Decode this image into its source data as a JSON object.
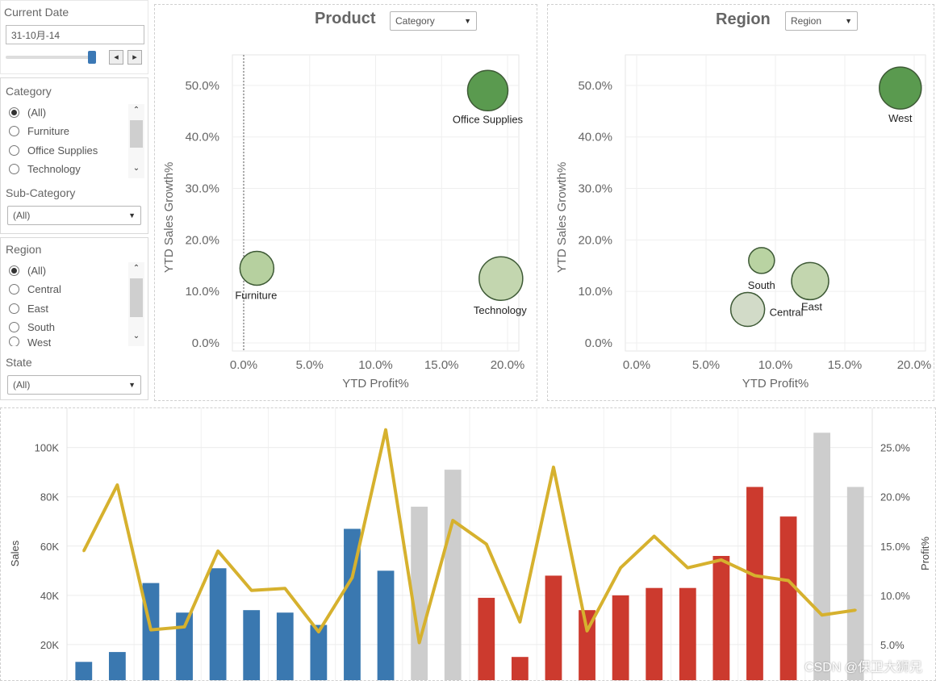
{
  "filters": {
    "current_date": {
      "label": "Current Date",
      "value": "31-10月-14"
    },
    "category": {
      "label": "Category",
      "options": [
        "(All)",
        "Furniture",
        "Office Supplies",
        "Technology"
      ],
      "selected": "(All)"
    },
    "sub_category": {
      "label": "Sub-Category",
      "value": "(All)"
    },
    "region": {
      "label": "Region",
      "options": [
        "(All)",
        "Central",
        "East",
        "South",
        "West"
      ],
      "selected": "(All)"
    },
    "state": {
      "label": "State",
      "value": "(All)"
    }
  },
  "product_panel": {
    "title": "Product",
    "dropdown": "Category"
  },
  "region_panel": {
    "title": "Region",
    "dropdown": "Region"
  },
  "watermark": "CSDN @保卫大狮兄",
  "chart_data": [
    {
      "type": "scatter",
      "name": "Product",
      "xlabel": "YTD Profit%",
      "ylabel": "YTD Sales Growth%",
      "xlim": [
        0,
        20
      ],
      "ylim": [
        0,
        55
      ],
      "x_ticks": [
        "0.0%",
        "5.0%",
        "10.0%",
        "15.0%",
        "20.0%"
      ],
      "y_ticks": [
        "0.0%",
        "10.0%",
        "20.0%",
        "30.0%",
        "40.0%",
        "50.0%"
      ],
      "points": [
        {
          "label": "Office Supplies",
          "x": 18.5,
          "y": 49.0,
          "size": 25,
          "color": "#5a9a4f"
        },
        {
          "label": "Furniture",
          "x": 1.0,
          "y": 14.5,
          "size": 21,
          "color": "#b6d09f"
        },
        {
          "label": "Technology",
          "x": 19.5,
          "y": 12.5,
          "size": 27,
          "color": "#c3d6af"
        }
      ]
    },
    {
      "type": "scatter",
      "name": "Region",
      "xlabel": "YTD Profit%",
      "ylabel": "YTD Sales Growth%",
      "xlim": [
        0,
        20
      ],
      "ylim": [
        0,
        55
      ],
      "x_ticks": [
        "0.0%",
        "5.0%",
        "10.0%",
        "15.0%",
        "20.0%"
      ],
      "y_ticks": [
        "0.0%",
        "10.0%",
        "20.0%",
        "30.0%",
        "40.0%",
        "50.0%"
      ],
      "points": [
        {
          "label": "West",
          "x": 19.0,
          "y": 49.5,
          "size": 26,
          "color": "#5a9a4f"
        },
        {
          "label": "South",
          "x": 9.0,
          "y": 16.0,
          "size": 16,
          "color": "#b9d3a2"
        },
        {
          "label": "East",
          "x": 12.5,
          "y": 12.0,
          "size": 23,
          "color": "#c3d6af"
        },
        {
          "label": "Central",
          "x": 8.0,
          "y": 6.5,
          "size": 21,
          "color": "#d2dbc8"
        }
      ]
    },
    {
      "type": "bar",
      "ylabel": "Sales",
      "y2label": "Profit%",
      "ylim": [
        0,
        112000
      ],
      "y2lim": [
        0,
        28
      ],
      "y_ticks": [
        "20K",
        "40K",
        "60K",
        "80K",
        "100K"
      ],
      "y2_ticks": [
        "5.0%",
        "10.0%",
        "15.0%",
        "20.0%",
        "25.0%"
      ],
      "bars": [
        {
          "value": 13000,
          "color": "#3a78b0"
        },
        {
          "value": 17000,
          "color": "#3a78b0"
        },
        {
          "value": 45000,
          "color": "#3a78b0"
        },
        {
          "value": 33000,
          "color": "#3a78b0"
        },
        {
          "value": 51000,
          "color": "#3a78b0"
        },
        {
          "value": 34000,
          "color": "#3a78b0"
        },
        {
          "value": 33000,
          "color": "#3a78b0"
        },
        {
          "value": 28000,
          "color": "#3a78b0"
        },
        {
          "value": 67000,
          "color": "#3a78b0"
        },
        {
          "value": 50000,
          "color": "#3a78b0"
        },
        {
          "value": 76000,
          "color": "#cdcdcd"
        },
        {
          "value": 91000,
          "color": "#cdcdcd"
        },
        {
          "value": 39000,
          "color": "#cc3a2e"
        },
        {
          "value": 15000,
          "color": "#cc3a2e"
        },
        {
          "value": 48000,
          "color": "#cc3a2e"
        },
        {
          "value": 34000,
          "color": "#cc3a2e"
        },
        {
          "value": 40000,
          "color": "#cc3a2e"
        },
        {
          "value": 43000,
          "color": "#cc3a2e"
        },
        {
          "value": 43000,
          "color": "#cc3a2e"
        },
        {
          "value": 56000,
          "color": "#cc3a2e"
        },
        {
          "value": 84000,
          "color": "#cc3a2e"
        },
        {
          "value": 72000,
          "color": "#cc3a2e"
        },
        {
          "value": 106000,
          "color": "#cdcdcd"
        },
        {
          "value": 84000,
          "color": "#cdcdcd"
        }
      ],
      "profit_pct": [
        14.5,
        21.2,
        6.5,
        6.8,
        14.5,
        10.5,
        10.7,
        6.3,
        11.8,
        26.8,
        5.2,
        17.6,
        15.2,
        7.3,
        23.0,
        6.4,
        12.8,
        16.0,
        12.8,
        13.6,
        12.0,
        11.5,
        8.0,
        8.5
      ],
      "line_color": "#d6b12e"
    }
  ]
}
